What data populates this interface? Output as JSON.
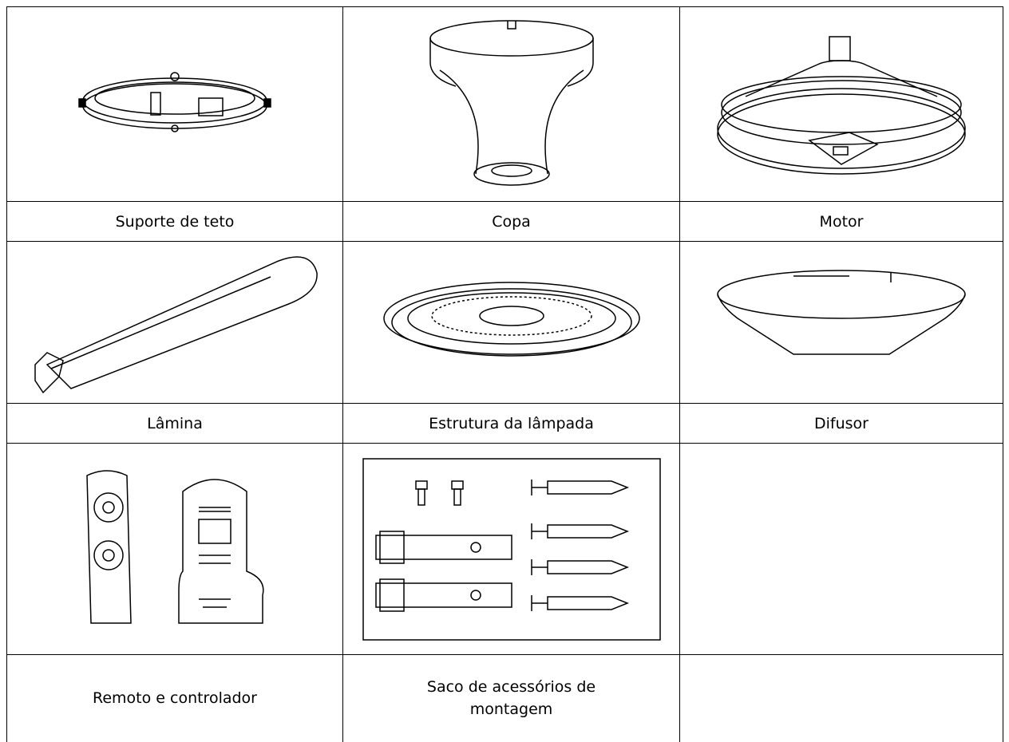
{
  "table": {
    "rows": [
      [
        "Suporte de teto",
        "Copa",
        "Motor"
      ],
      [
        "Lâmina",
        "Estrutura da lâmpada",
        "Difusor"
      ],
      [
        "Remoto e controlador",
        "Saco de acessórios de montagem"
      ]
    ]
  }
}
